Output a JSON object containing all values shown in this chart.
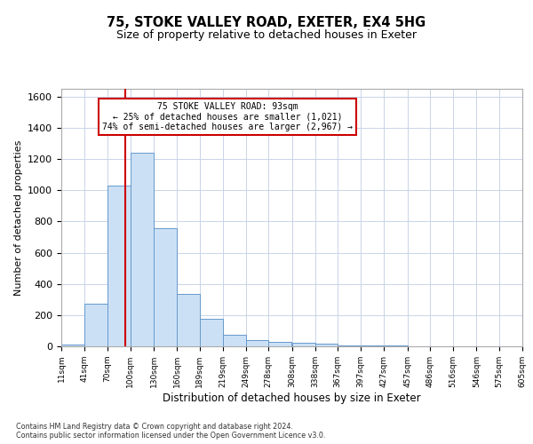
{
  "title1": "75, STOKE VALLEY ROAD, EXETER, EX4 5HG",
  "title2": "Size of property relative to detached houses in Exeter",
  "xlabel": "Distribution of detached houses by size in Exeter",
  "ylabel": "Number of detached properties",
  "bin_edges": [
    11,
    41,
    70,
    100,
    130,
    160,
    189,
    219,
    249,
    278,
    308,
    338,
    367,
    397,
    427,
    457,
    486,
    516,
    546,
    575,
    605
  ],
  "hist_values": [
    10,
    275,
    1030,
    1240,
    755,
    335,
    178,
    75,
    42,
    30,
    20,
    15,
    5,
    5,
    3,
    2,
    1,
    1,
    0,
    0
  ],
  "vline_x": 93,
  "annotation_text": "75 STOKE VALLEY ROAD: 93sqm\n← 25% of detached houses are smaller (1,021)\n74% of semi-detached houses are larger (2,967) →",
  "bar_color": "#cce0f5",
  "bar_edge_color": "#6699cc",
  "vline_color": "#cc0000",
  "annotation_box_facecolor": "#ffffff",
  "annotation_box_edgecolor": "#cc0000",
  "grid_color": "#c8d4e8",
  "ylim": [
    0,
    1650
  ],
  "yticks": [
    0,
    200,
    400,
    600,
    800,
    1000,
    1200,
    1400,
    1600
  ],
  "footnote": "Contains HM Land Registry data © Crown copyright and database right 2024.\nContains public sector information licensed under the Open Government Licence v3.0."
}
